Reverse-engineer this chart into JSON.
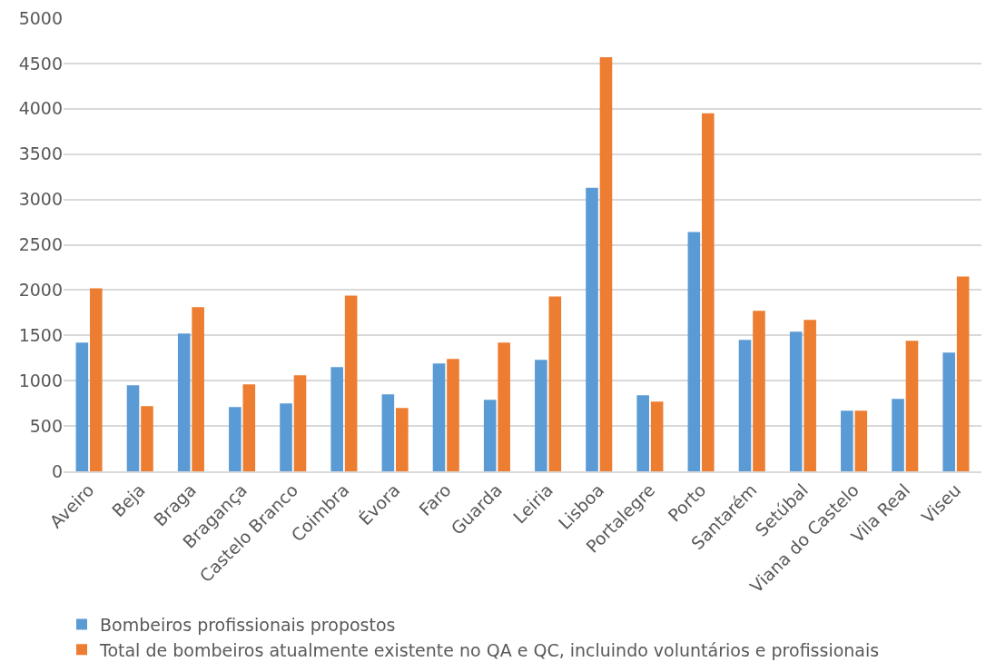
{
  "chart_data": {
    "type": "bar",
    "categories": [
      "Aveiro",
      "Beja",
      "Braga",
      "Bragança",
      "Castelo Branco",
      "Coimbra",
      "Évora",
      "Faro",
      "Guarda",
      "Leiria",
      "Lisboa",
      "Portalegre",
      "Porto",
      "Santarém",
      "Setúbal",
      "Viana do Castelo",
      "Vila Real",
      "Viseu"
    ],
    "series": [
      {
        "name": "Bombeiros profissionais propostos",
        "color": "#5b9bd5",
        "values": [
          1420,
          950,
          1520,
          710,
          750,
          1150,
          850,
          1190,
          790,
          1230,
          3130,
          840,
          2640,
          1450,
          1540,
          670,
          800,
          1310
        ]
      },
      {
        "name": "Total de bombeiros atualmente existente no QA e QC, incluindo voluntários e profissionais",
        "color": "#ed7d31",
        "values": [
          2020,
          720,
          1810,
          960,
          1060,
          1940,
          700,
          1240,
          1420,
          1930,
          4570,
          770,
          3950,
          1770,
          1670,
          670,
          1440,
          2150
        ]
      }
    ],
    "ylim": [
      0,
      5000
    ],
    "yticks": [
      0,
      500,
      1000,
      1500,
      2000,
      2500,
      3000,
      3500,
      4000,
      4500,
      5000
    ],
    "grid": "y",
    "legend": "bottom"
  }
}
